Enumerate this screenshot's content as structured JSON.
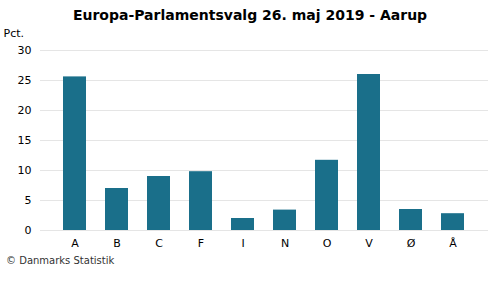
{
  "chart_data": {
    "type": "bar",
    "title": "Europa-Parlamentsvalg 26. maj 2019 - Aarup",
    "categories": [
      "A",
      "B",
      "C",
      "F",
      "I",
      "N",
      "O",
      "V",
      "Ø",
      "Å"
    ],
    "values": [
      25.6,
      7.0,
      9.0,
      9.8,
      2.0,
      3.4,
      11.7,
      26.0,
      3.5,
      2.8
    ],
    "color": "#1a6f8a",
    "y_label": "Pct.",
    "ylim": [
      0,
      30
    ],
    "yticks": [
      0,
      5,
      10,
      15,
      20,
      25,
      30
    ],
    "grid": true,
    "caption": "© Danmarks Statistik"
  }
}
